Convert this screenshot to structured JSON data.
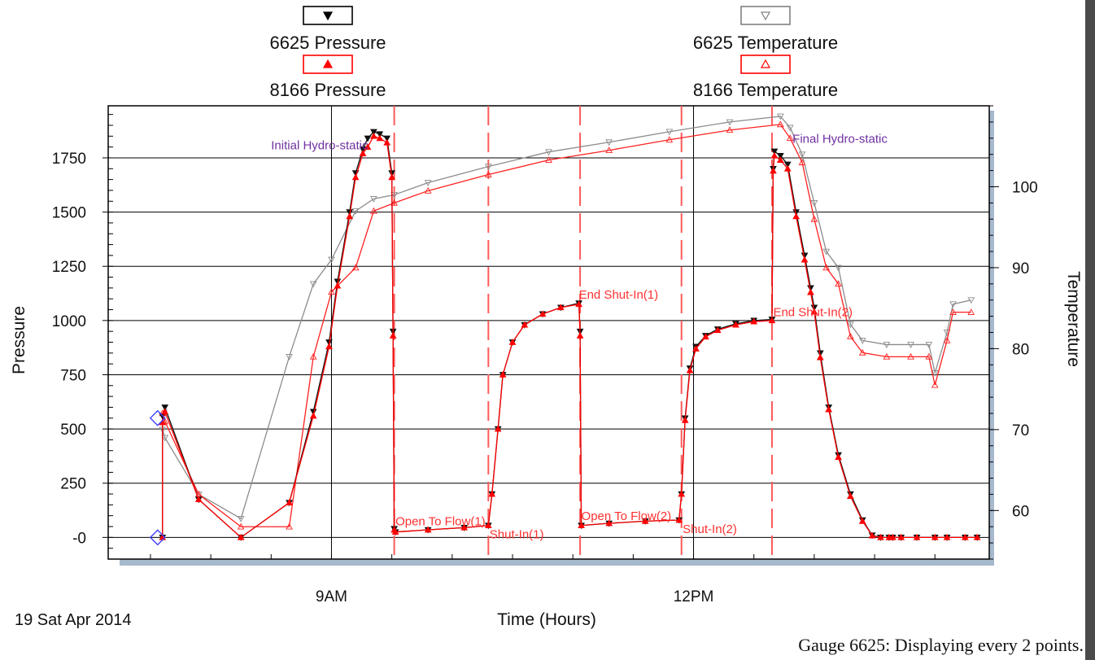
{
  "chart_data": {
    "type": "line",
    "legend": [
      {
        "name": "6625 Pressure",
        "color": "#000000",
        "marker": "triangle-down-filled"
      },
      {
        "name": "6625 Temperature",
        "color": "#808080",
        "marker": "triangle-down-open"
      },
      {
        "name": "8166 Pressure",
        "color": "#ff0000",
        "marker": "triangle-up-filled"
      },
      {
        "name": "8166 Temperature",
        "color": "#ff0000",
        "marker": "triangle-up-open"
      }
    ],
    "xlabel": "Time (Hours)",
    "ylabel": "Pressure",
    "y2label": "Temperature",
    "date_label": "19 Sat Apr 2014",
    "footer": "Gauge 6625: Displaying every 2 points.",
    "x_ticks": [
      "9AM",
      "12PM"
    ],
    "x_tick_hours": [
      9,
      12
    ],
    "xlim_hours": [
      7.15,
      14.45
    ],
    "y_ticks": [
      "-0",
      "250",
      "500",
      "750",
      "1000",
      "1250",
      "1500",
      "1750"
    ],
    "y_tick_values": [
      0,
      250,
      500,
      750,
      1000,
      1250,
      1500,
      1750
    ],
    "ylim": [
      -100,
      1990
    ],
    "y2_ticks": [
      "60",
      "70",
      "80",
      "90",
      "100"
    ],
    "y2_tick_values": [
      60,
      70,
      80,
      90,
      100
    ],
    "y2lim": [
      54,
      110
    ],
    "event_lines_hours": [
      9.52,
      10.3,
      11.06,
      11.9,
      12.65
    ],
    "annotations": [
      {
        "text": "Initial Hydro-static",
        "x": 8.5,
        "y": 1790,
        "color": "#7030a0"
      },
      {
        "text": "Final Hydro-static",
        "x": 12.82,
        "y": 1820,
        "color": "#7030a0"
      },
      {
        "text": "Open To Flow(1)",
        "x": 9.53,
        "y": 55,
        "color": "#ff3030"
      },
      {
        "text": "Shut-In(1)",
        "x": 10.31,
        "y": -5,
        "color": "#ff3030"
      },
      {
        "text": "End Shut-In(1)",
        "x": 11.05,
        "y": 1100,
        "color": "#ff3030"
      },
      {
        "text": "Open To Flow(2)",
        "x": 11.07,
        "y": 80,
        "color": "#ff3030"
      },
      {
        "text": "Shut-In(2)",
        "x": 11.91,
        "y": 20,
        "color": "#ff3030"
      },
      {
        "text": "End Shut-In(2)",
        "x": 12.66,
        "y": 1020,
        "color": "#ff3030"
      }
    ],
    "series": [
      {
        "name": "6625 Pressure",
        "x": [
          7.6,
          7.6,
          7.62,
          7.9,
          8.25,
          8.65,
          8.85,
          8.98,
          9.05,
          9.15,
          9.2,
          9.26,
          9.3,
          9.35,
          9.4,
          9.46,
          9.5,
          9.51,
          9.52,
          9.53,
          9.8,
          10.1,
          10.3,
          10.33,
          10.38,
          10.42,
          10.5,
          10.6,
          10.75,
          10.9,
          11.05,
          11.06,
          11.07,
          11.3,
          11.6,
          11.88,
          11.9,
          11.93,
          11.97,
          12.02,
          12.1,
          12.2,
          12.35,
          12.5,
          12.65,
          12.66,
          12.67,
          12.72,
          12.78,
          12.85,
          12.92,
          12.97,
          13.0,
          13.05,
          13.12,
          13.2,
          13.3,
          13.4,
          13.48,
          13.55,
          13.62,
          13.65,
          13.72,
          13.85,
          14.0,
          14.1,
          14.25,
          14.35
        ],
        "y": [
          0,
          560,
          600,
          175,
          0,
          160,
          580,
          900,
          1180,
          1500,
          1680,
          1790,
          1840,
          1870,
          1860,
          1840,
          1680,
          950,
          40,
          25,
          35,
          45,
          55,
          200,
          500,
          750,
          900,
          980,
          1030,
          1060,
          1080,
          950,
          55,
          65,
          75,
          80,
          200,
          550,
          780,
          880,
          930,
          960,
          985,
          1000,
          1005,
          1700,
          1780,
          1760,
          1720,
          1500,
          1300,
          1150,
          1060,
          850,
          600,
          380,
          200,
          80,
          10,
          0,
          0,
          0,
          0,
          0,
          0,
          0,
          0,
          0
        ]
      },
      {
        "name": "6625 Temperature",
        "x": [
          7.6,
          7.62,
          7.9,
          8.25,
          8.65,
          8.85,
          9.0,
          9.2,
          9.35,
          9.52,
          9.8,
          10.3,
          10.8,
          11.3,
          11.8,
          12.3,
          12.72,
          12.8,
          12.9,
          13.0,
          13.1,
          13.2,
          13.3,
          13.4,
          13.6,
          13.8,
          13.95,
          14.0,
          14.1,
          14.15,
          14.3
        ],
        "y": [
          70,
          69,
          62,
          59,
          79,
          88,
          91,
          97,
          98.5,
          99,
          100.5,
          102.5,
          104.3,
          105.5,
          106.8,
          108,
          108.7,
          107.3,
          104,
          98,
          92,
          90,
          83,
          81,
          80.5,
          80.5,
          80.5,
          77,
          82,
          85.5,
          86
        ]
      },
      {
        "name": "8166 Pressure",
        "x": [
          7.6,
          7.6,
          7.62,
          7.9,
          8.25,
          8.65,
          8.85,
          8.98,
          9.05,
          9.15,
          9.2,
          9.26,
          9.3,
          9.35,
          9.4,
          9.46,
          9.5,
          9.51,
          9.52,
          9.53,
          9.8,
          10.1,
          10.3,
          10.33,
          10.38,
          10.42,
          10.5,
          10.6,
          10.75,
          10.9,
          11.05,
          11.06,
          11.07,
          11.3,
          11.6,
          11.88,
          11.9,
          11.93,
          11.97,
          12.02,
          12.1,
          12.2,
          12.35,
          12.5,
          12.65,
          12.66,
          12.67,
          12.72,
          12.78,
          12.85,
          12.92,
          12.97,
          13.0,
          13.05,
          13.12,
          13.2,
          13.3,
          13.4,
          13.48,
          13.55,
          13.62,
          13.65,
          13.72,
          13.85,
          14.0,
          14.1,
          14.25,
          14.35
        ],
        "y": [
          0,
          530,
          580,
          175,
          0,
          160,
          560,
          880,
          1160,
          1480,
          1660,
          1770,
          1800,
          1850,
          1840,
          1820,
          1660,
          930,
          35,
          25,
          35,
          45,
          55,
          200,
          500,
          750,
          900,
          980,
          1030,
          1060,
          1075,
          930,
          55,
          65,
          75,
          80,
          200,
          540,
          770,
          870,
          925,
          955,
          980,
          995,
          1000,
          1690,
          1760,
          1740,
          1700,
          1480,
          1280,
          1130,
          1040,
          830,
          590,
          370,
          190,
          75,
          8,
          0,
          0,
          0,
          0,
          0,
          0,
          0,
          0,
          0
        ]
      },
      {
        "name": "8166 Temperature",
        "x": [
          7.6,
          7.62,
          7.9,
          8.25,
          8.65,
          8.85,
          9.0,
          9.2,
          9.35,
          9.52,
          9.8,
          10.3,
          10.8,
          11.3,
          11.8,
          12.3,
          12.72,
          12.8,
          12.9,
          13.0,
          13.1,
          13.2,
          13.3,
          13.4,
          13.6,
          13.8,
          13.95,
          14.0,
          14.1,
          14.15,
          14.3
        ],
        "y": [
          72,
          71,
          62,
          58,
          58,
          79,
          87,
          90,
          97,
          98,
          99.5,
          101.5,
          103.3,
          104.5,
          105.8,
          107,
          107.7,
          106,
          103,
          96,
          90,
          88,
          81.5,
          79.5,
          79,
          79,
          79,
          75.5,
          81,
          84.5,
          84.5
        ]
      }
    ]
  }
}
